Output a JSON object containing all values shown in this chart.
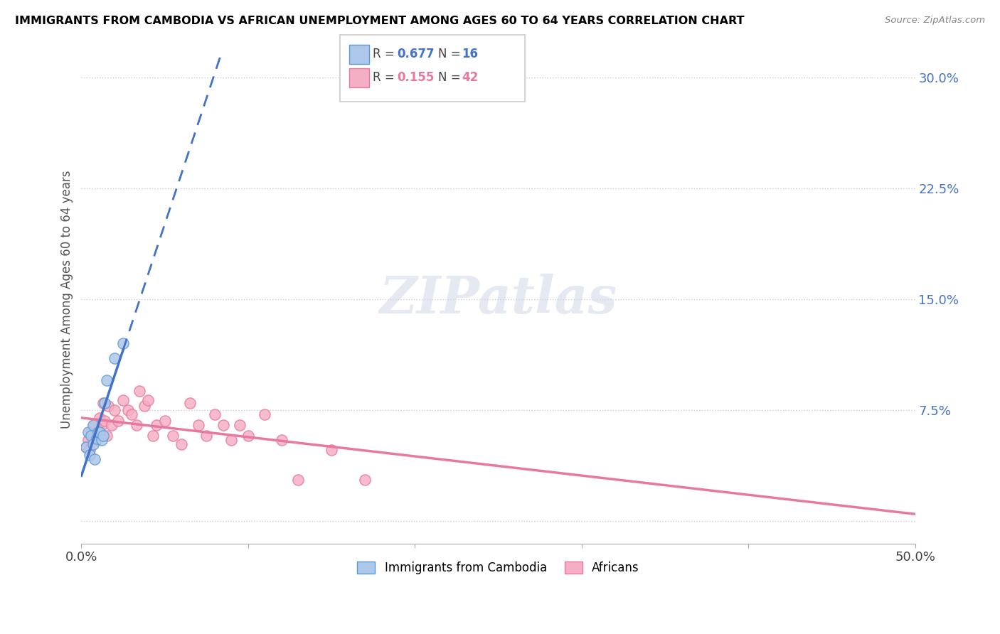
{
  "title": "IMMIGRANTS FROM CAMBODIA VS AFRICAN UNEMPLOYMENT AMONG AGES 60 TO 64 YEARS CORRELATION CHART",
  "source": "Source: ZipAtlas.com",
  "ylabel": "Unemployment Among Ages 60 to 64 years",
  "xlim": [
    0.0,
    0.5
  ],
  "ylim": [
    -0.015,
    0.315
  ],
  "xticks": [
    0.0,
    0.1,
    0.2,
    0.3,
    0.4,
    0.5
  ],
  "xticklabels": [
    "0.0%",
    "",
    "",
    "",
    "",
    "50.0%"
  ],
  "yticks": [
    0.0,
    0.075,
    0.15,
    0.225,
    0.3
  ],
  "yticklabels": [
    "",
    "7.5%",
    "15.0%",
    "22.5%",
    "30.0%"
  ],
  "r_cambodia": "0.677",
  "n_cambodia": "16",
  "r_african": "0.155",
  "n_african": "42",
  "watermark": "ZIPatlas",
  "cambodia_color": "#adc8ea",
  "cambodia_edge": "#5b9bd5",
  "african_color": "#f5afc4",
  "african_edge": "#e8799e",
  "trendline_cambodia_color": "#4472c4",
  "trendline_african_color": "#e8799e",
  "scatter_cambodia_x": [
    0.003,
    0.004,
    0.005,
    0.006,
    0.007,
    0.007,
    0.008,
    0.009,
    0.01,
    0.011,
    0.012,
    0.013,
    0.014,
    0.015,
    0.02,
    0.025
  ],
  "scatter_cambodia_y": [
    0.05,
    0.06,
    0.045,
    0.058,
    0.052,
    0.065,
    0.042,
    0.056,
    0.06,
    0.06,
    0.055,
    0.058,
    0.08,
    0.095,
    0.11,
    0.12
  ],
  "scatter_african_x": [
    0.003,
    0.004,
    0.005,
    0.006,
    0.007,
    0.008,
    0.009,
    0.01,
    0.011,
    0.012,
    0.013,
    0.014,
    0.015,
    0.016,
    0.018,
    0.02,
    0.022,
    0.025,
    0.028,
    0.03,
    0.033,
    0.035,
    0.038,
    0.04,
    0.043,
    0.045,
    0.05,
    0.055,
    0.06,
    0.065,
    0.07,
    0.075,
    0.08,
    0.085,
    0.09,
    0.095,
    0.1,
    0.11,
    0.12,
    0.13,
    0.15,
    0.17
  ],
  "scatter_african_y": [
    0.05,
    0.055,
    0.048,
    0.06,
    0.058,
    0.065,
    0.055,
    0.062,
    0.07,
    0.065,
    0.08,
    0.068,
    0.058,
    0.078,
    0.065,
    0.075,
    0.068,
    0.082,
    0.075,
    0.072,
    0.065,
    0.088,
    0.078,
    0.082,
    0.058,
    0.065,
    0.068,
    0.058,
    0.052,
    0.08,
    0.065,
    0.058,
    0.072,
    0.065,
    0.055,
    0.065,
    0.058,
    0.072,
    0.055,
    0.028,
    0.048,
    0.028
  ]
}
